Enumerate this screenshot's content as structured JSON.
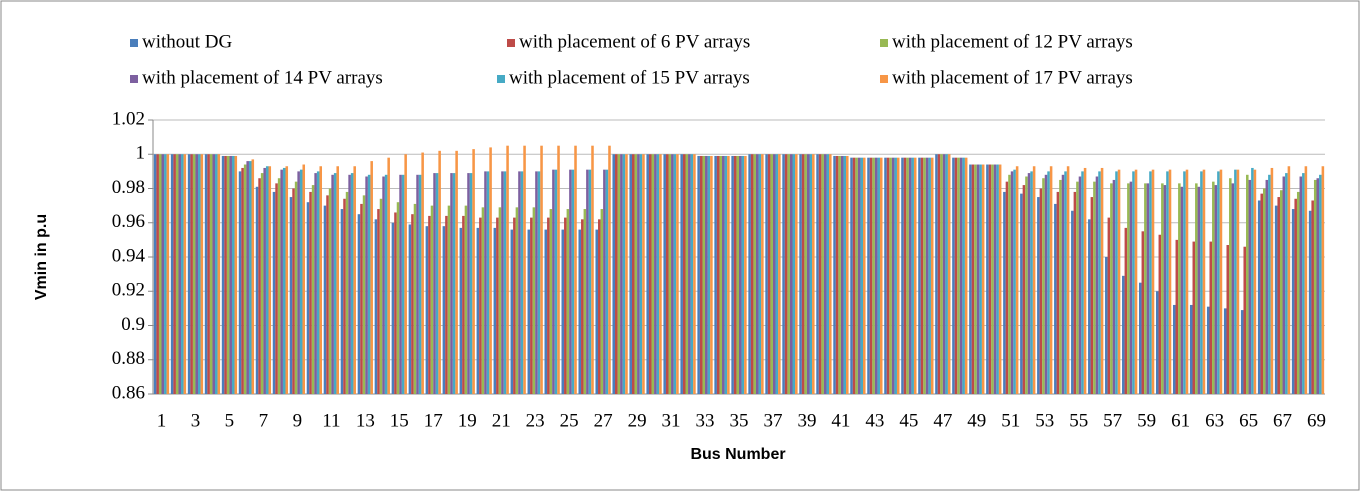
{
  "chart_data": {
    "type": "bar",
    "x_label": "Bus Number",
    "y_label": "Vmin in p.u",
    "categories": [
      "1",
      null,
      "3",
      null,
      "5",
      null,
      "7",
      null,
      "9",
      null,
      "11",
      null,
      "13",
      null,
      "15",
      null,
      "17",
      null,
      "19",
      null,
      "21",
      null,
      "23",
      null,
      "25",
      null,
      "27",
      null,
      "29",
      null,
      "31",
      null,
      "33",
      null,
      "35",
      null,
      "37",
      null,
      "39",
      null,
      "41",
      null,
      "43",
      null,
      "45",
      null,
      "47",
      null,
      "49",
      null,
      "51",
      null,
      "53",
      null,
      "55",
      null,
      "57",
      null,
      "59",
      null,
      "61",
      null,
      "63",
      null,
      "65",
      null,
      "67",
      null,
      "69"
    ],
    "ylim": [
      0.86,
      1.02
    ],
    "yticks": [
      0.86,
      0.88,
      0.9,
      0.92,
      0.94,
      0.96,
      0.98,
      1,
      1.02
    ],
    "grid": true,
    "series": [
      {
        "name": "without DG",
        "color": "#4a7ebb",
        "values": [
          1,
          1,
          1,
          1,
          0.999,
          0.99,
          0.981,
          0.978,
          0.975,
          0.972,
          0.97,
          0.968,
          0.965,
          0.962,
          0.96,
          0.959,
          0.958,
          0.958,
          0.957,
          0.957,
          0.957,
          0.956,
          0.956,
          0.956,
          0.956,
          0.956,
          0.956,
          1,
          1,
          1,
          1,
          1,
          0.999,
          0.999,
          0.999,
          1,
          1,
          1,
          1,
          1,
          0.999,
          0.998,
          0.998,
          0.998,
          0.998,
          0.998,
          1,
          0.998,
          0.994,
          0.994,
          0.978,
          0.977,
          0.975,
          0.971,
          0.967,
          0.962,
          0.94,
          0.929,
          0.925,
          0.92,
          0.912,
          0.912,
          0.911,
          0.91,
          0.909,
          0.973,
          0.97,
          0.968,
          0.967
        ]
      },
      {
        "name": "with placement of 6 PV arrays",
        "color": "#be4b48",
        "values": [
          1,
          1,
          1,
          1,
          0.999,
          0.992,
          0.986,
          0.983,
          0.98,
          0.978,
          0.976,
          0.974,
          0.971,
          0.968,
          0.966,
          0.965,
          0.964,
          0.964,
          0.964,
          0.963,
          0.963,
          0.963,
          0.963,
          0.963,
          0.963,
          0.962,
          0.962,
          1,
          1,
          1,
          1,
          1,
          0.999,
          0.999,
          0.999,
          1,
          1,
          1,
          1,
          1,
          0.999,
          0.998,
          0.998,
          0.998,
          0.998,
          0.998,
          1,
          0.998,
          0.994,
          0.994,
          0.984,
          0.982,
          0.98,
          0.978,
          0.978,
          0.975,
          0.963,
          0.957,
          0.955,
          0.953,
          0.95,
          0.949,
          0.949,
          0.947,
          0.946,
          0.977,
          0.975,
          0.974,
          0.973
        ]
      },
      {
        "name": "with placement of 12 PV arrays",
        "color": "#98b954",
        "values": [
          1,
          1,
          1,
          1,
          0.999,
          0.994,
          0.989,
          0.986,
          0.984,
          0.982,
          0.98,
          0.978,
          0.976,
          0.974,
          0.972,
          0.971,
          0.97,
          0.97,
          0.97,
          0.969,
          0.969,
          0.969,
          0.969,
          0.968,
          0.968,
          0.968,
          0.968,
          1,
          1,
          1,
          1,
          1,
          0.999,
          0.999,
          0.999,
          1,
          1,
          1,
          1,
          1,
          0.999,
          0.998,
          0.998,
          0.998,
          0.998,
          0.998,
          1,
          0.998,
          0.994,
          0.994,
          0.988,
          0.987,
          0.986,
          0.985,
          0.984,
          0.984,
          0.983,
          0.983,
          0.983,
          0.983,
          0.983,
          0.983,
          0.984,
          0.986,
          0.988,
          0.98,
          0.979,
          0.978,
          0.985
        ]
      },
      {
        "name": "with placement of 14 PV arrays",
        "color": "#7d60a0",
        "values": [
          1,
          1,
          1,
          1,
          0.999,
          0.996,
          0.992,
          0.991,
          0.99,
          0.989,
          0.988,
          0.988,
          0.987,
          0.987,
          0.988,
          0.988,
          0.989,
          0.989,
          0.989,
          0.99,
          0.99,
          0.99,
          0.99,
          0.991,
          0.991,
          0.991,
          0.991,
          1,
          1,
          1,
          1,
          1,
          0.999,
          0.999,
          0.999,
          1,
          1,
          1,
          1,
          1,
          0.999,
          0.998,
          0.998,
          0.998,
          0.998,
          0.998,
          1,
          0.998,
          0.994,
          0.994,
          0.99,
          0.989,
          0.988,
          0.988,
          0.987,
          0.987,
          0.985,
          0.984,
          0.983,
          0.982,
          0.981,
          0.981,
          0.982,
          0.983,
          0.985,
          0.985,
          0.987,
          0.987,
          0.986
        ]
      },
      {
        "name": "with placement of 15 PV arrays",
        "color": "#46aac5",
        "values": [
          1,
          1,
          1,
          1,
          0.999,
          0.996,
          0.993,
          0.992,
          0.991,
          0.99,
          0.989,
          0.989,
          0.988,
          0.988,
          0.988,
          0.988,
          0.989,
          0.989,
          0.989,
          0.99,
          0.99,
          0.99,
          0.99,
          0.991,
          0.991,
          0.991,
          0.991,
          1,
          1,
          1,
          1,
          1,
          0.999,
          0.999,
          0.999,
          1,
          1,
          1,
          1,
          1,
          0.999,
          0.998,
          0.998,
          0.998,
          0.998,
          0.998,
          1,
          0.998,
          0.994,
          0.994,
          0.991,
          0.99,
          0.99,
          0.99,
          0.99,
          0.99,
          0.99,
          0.99,
          0.99,
          0.99,
          0.99,
          0.99,
          0.99,
          0.991,
          0.992,
          0.988,
          0.989,
          0.989,
          0.988
        ]
      },
      {
        "name": "with placement of 17 PV arrays",
        "color": "#f79646",
        "values": [
          1,
          1,
          1,
          1,
          0.999,
          0.997,
          0.993,
          0.993,
          0.994,
          0.993,
          0.993,
          0.993,
          0.996,
          0.998,
          1.0,
          1.001,
          1.002,
          1.002,
          1.003,
          1.004,
          1.005,
          1.005,
          1.005,
          1.005,
          1.005,
          1.005,
          1.005,
          1,
          1,
          1,
          1,
          1,
          0.999,
          0.999,
          0.999,
          1,
          1,
          1,
          1,
          1,
          0.999,
          0.998,
          0.998,
          0.998,
          0.998,
          0.998,
          1,
          0.998,
          0.994,
          0.994,
          0.993,
          0.993,
          0.993,
          0.993,
          0.992,
          0.992,
          0.991,
          0.991,
          0.991,
          0.991,
          0.991,
          0.991,
          0.991,
          0.991,
          0.991,
          0.992,
          0.993,
          0.993,
          0.993
        ]
      }
    ]
  }
}
